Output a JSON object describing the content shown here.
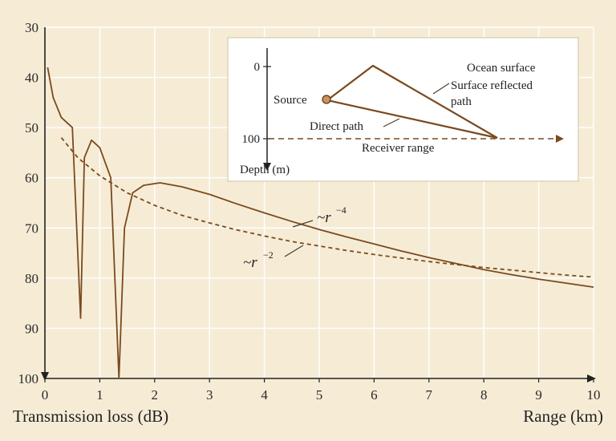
{
  "chart_data": {
    "type": "line",
    "xlabel": "Range (km)",
    "ylabel": "Transmission loss (dB)",
    "xlim": [
      0,
      10
    ],
    "ylim": [
      100,
      30
    ],
    "y_inverted": true,
    "grid": true,
    "x_ticks": [
      "0",
      "1",
      "2",
      "3",
      "4",
      "5",
      "6",
      "7",
      "8",
      "9",
      "10"
    ],
    "y_ticks": [
      "30",
      "40",
      "50",
      "60",
      "70",
      "80",
      "90",
      "100"
    ],
    "series": [
      {
        "style": "solid",
        "color": "#7a4a1e",
        "x": [
          0.05,
          0.15,
          0.3,
          0.5,
          0.65,
          0.72,
          0.85,
          1.0,
          1.2,
          1.35,
          1.45,
          1.6,
          1.8,
          2.1,
          2.5,
          3.0,
          3.5,
          4.0,
          4.5,
          5.0,
          5.5,
          6.0,
          6.5,
          7.0,
          7.5,
          8.0,
          8.5,
          9.0,
          9.5,
          10.0
        ],
        "y": [
          38,
          44,
          48,
          50,
          88,
          56,
          52.5,
          54,
          60,
          100,
          70,
          63,
          61.5,
          61,
          61.8,
          63.3,
          65.2,
          67,
          68.7,
          70.3,
          71.8,
          73.2,
          74.6,
          75.9,
          77.1,
          78.3,
          79.3,
          80.2,
          81,
          81.8
        ]
      },
      {
        "style": "dashed",
        "color": "#7a4a1e",
        "x": [
          0.3,
          0.6,
          1.0,
          1.5,
          2.0,
          2.5,
          3.0,
          3.5,
          4.0,
          4.5,
          5.0,
          5.5,
          6.0,
          6.5,
          7.0,
          7.5,
          8.0,
          8.5,
          9.0,
          9.5,
          10.0
        ],
        "y": [
          52,
          56,
          59.6,
          63,
          65.5,
          67.5,
          69,
          70.4,
          71.6,
          72.7,
          73.6,
          74.5,
          75.3,
          76,
          76.7,
          77.3,
          77.9,
          78.4,
          78.9,
          79.4,
          79.8
        ]
      }
    ],
    "annotations": {
      "r4_label": "~r",
      "r4_exp": "−4",
      "r2_label": "~r",
      "r2_exp": "−2"
    },
    "inset": {
      "ocean_surface": "Ocean surface",
      "surface_reflected_1": "Surface reflected",
      "surface_reflected_2": "path",
      "source": "Source",
      "direct_path": "Direct path",
      "receiver_range": "Receiver range",
      "depth_label": "Depth (m)",
      "depth_ticks": [
        "0",
        "100"
      ]
    }
  }
}
